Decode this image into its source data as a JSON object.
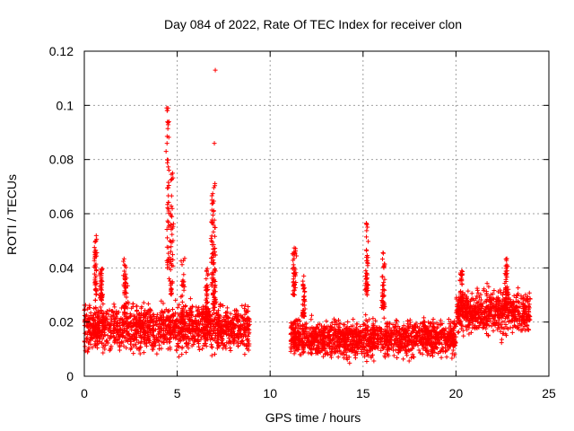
{
  "chart_data": {
    "type": "scatter",
    "title": "Day 084 of 2022, Rate Of TEC Index for receiver clon",
    "xlabel": "GPS time / hours",
    "ylabel": "ROTI / TECUs",
    "xlim": [
      0,
      25
    ],
    "ylim": [
      0,
      0.12
    ],
    "x_ticks": [
      "0",
      "5",
      "10",
      "15",
      "20",
      "25"
    ],
    "x_tick_values": [
      0,
      5,
      10,
      15,
      20,
      25
    ],
    "y_ticks": [
      "0",
      "0.02",
      "0.04",
      "0.06",
      "0.08",
      "0.1",
      "0.12"
    ],
    "y_tick_values": [
      0,
      0.02,
      0.04,
      0.06,
      0.08,
      0.1,
      0.12
    ],
    "grid": true,
    "marker": "+",
    "color": "#ff0000",
    "segments": [
      {
        "x_start": 0.0,
        "x_end": 8.9,
        "baseline": 0.018,
        "spread": 0.006
      },
      {
        "x_start": 11.1,
        "x_end": 20.0,
        "baseline": 0.014,
        "spread": 0.005
      },
      {
        "x_start": 20.0,
        "x_end": 24.0,
        "baseline": 0.024,
        "spread": 0.006
      }
    ],
    "clusters": [
      {
        "x": 0.6,
        "y_min": 0.028,
        "y_max": 0.052
      },
      {
        "x": 0.9,
        "y_min": 0.028,
        "y_max": 0.04
      },
      {
        "x": 2.2,
        "y_min": 0.025,
        "y_max": 0.044
      },
      {
        "x": 4.5,
        "y_min": 0.04,
        "y_max": 0.1
      },
      {
        "x": 4.7,
        "y_min": 0.03,
        "y_max": 0.075
      },
      {
        "x": 5.3,
        "y_min": 0.02,
        "y_max": 0.045
      },
      {
        "x": 6.6,
        "y_min": 0.02,
        "y_max": 0.04
      },
      {
        "x": 6.9,
        "y_min": 0.03,
        "y_max": 0.068
      },
      {
        "x": 7.0,
        "y_min": 0.025,
        "y_max": 0.074
      },
      {
        "x": 11.3,
        "y_min": 0.03,
        "y_max": 0.048
      },
      {
        "x": 11.8,
        "y_min": 0.022,
        "y_max": 0.037
      },
      {
        "x": 15.2,
        "y_min": 0.03,
        "y_max": 0.057
      },
      {
        "x": 16.1,
        "y_min": 0.025,
        "y_max": 0.047
      },
      {
        "x": 20.3,
        "y_min": 0.025,
        "y_max": 0.039
      },
      {
        "x": 22.7,
        "y_min": 0.025,
        "y_max": 0.045
      }
    ],
    "outliers": [
      {
        "x": 7.05,
        "y": 0.113
      },
      {
        "x": 7.0,
        "y": 0.086
      },
      {
        "x": 4.5,
        "y": 0.099
      },
      {
        "x": 4.55,
        "y": 0.094
      },
      {
        "x": 4.45,
        "y": 0.086
      },
      {
        "x": 4.4,
        "y": 0.083
      }
    ]
  }
}
